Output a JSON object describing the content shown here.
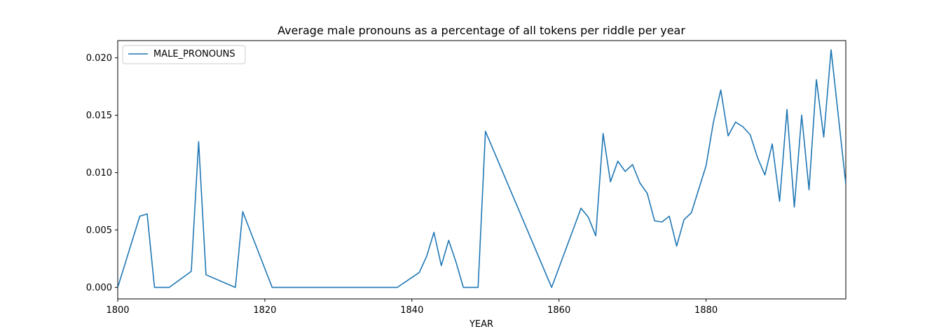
{
  "chart_data": {
    "type": "line",
    "title": "Average male pronouns as a percentage of all tokens per riddle per year",
    "xlabel": "YEAR",
    "ylabel": "",
    "xlim": [
      1800,
      1899
    ],
    "ylim": [
      -0.001,
      0.0215
    ],
    "x_ticks": [
      1800,
      1820,
      1840,
      1860,
      1880
    ],
    "y_ticks": [
      0.0,
      0.005,
      0.01,
      0.015,
      0.02
    ],
    "x_tick_labels": [
      "1800",
      "1820",
      "1840",
      "1860",
      "1880"
    ],
    "y_tick_labels": [
      "0.000",
      "0.005",
      "0.010",
      "0.015",
      "0.020"
    ],
    "grid": false,
    "legend_position": "top-left",
    "series": [
      {
        "name": "MALE_PRONOUNS",
        "color": "#1f77b4",
        "x": [
          1800,
          1803,
          1804,
          1805,
          1807,
          1810,
          1811,
          1812,
          1816,
          1817,
          1821,
          1838,
          1841,
          1842,
          1843,
          1844,
          1845,
          1846,
          1847,
          1849,
          1850,
          1859,
          1863,
          1864,
          1865,
          1866,
          1867,
          1868,
          1869,
          1870,
          1871,
          1872,
          1873,
          1874,
          1875,
          1876,
          1877,
          1878,
          1880,
          1881,
          1882,
          1883,
          1884,
          1885,
          1886,
          1887,
          1888,
          1889,
          1890,
          1891,
          1892,
          1893,
          1894,
          1895,
          1896,
          1897,
          1899
        ],
        "values": [
          0.0,
          0.0062,
          0.0064,
          0.0,
          0.0,
          0.0014,
          0.0127,
          0.0011,
          0.0,
          0.0066,
          0.0,
          0.0,
          0.0013,
          0.0027,
          0.0048,
          0.0019,
          0.0041,
          0.0022,
          0.0,
          0.0,
          0.0136,
          0.0,
          0.0069,
          0.0061,
          0.0045,
          0.0134,
          0.0092,
          0.011,
          0.0101,
          0.0107,
          0.0091,
          0.0082,
          0.0058,
          0.0057,
          0.0062,
          0.0036,
          0.0059,
          0.0065,
          0.0106,
          0.0144,
          0.0172,
          0.0132,
          0.0144,
          0.014,
          0.0133,
          0.0113,
          0.0098,
          0.0125,
          0.0075,
          0.0155,
          0.007,
          0.015,
          0.0085,
          0.0181,
          0.0131,
          0.0207,
          0.009
        ]
      }
    ]
  }
}
